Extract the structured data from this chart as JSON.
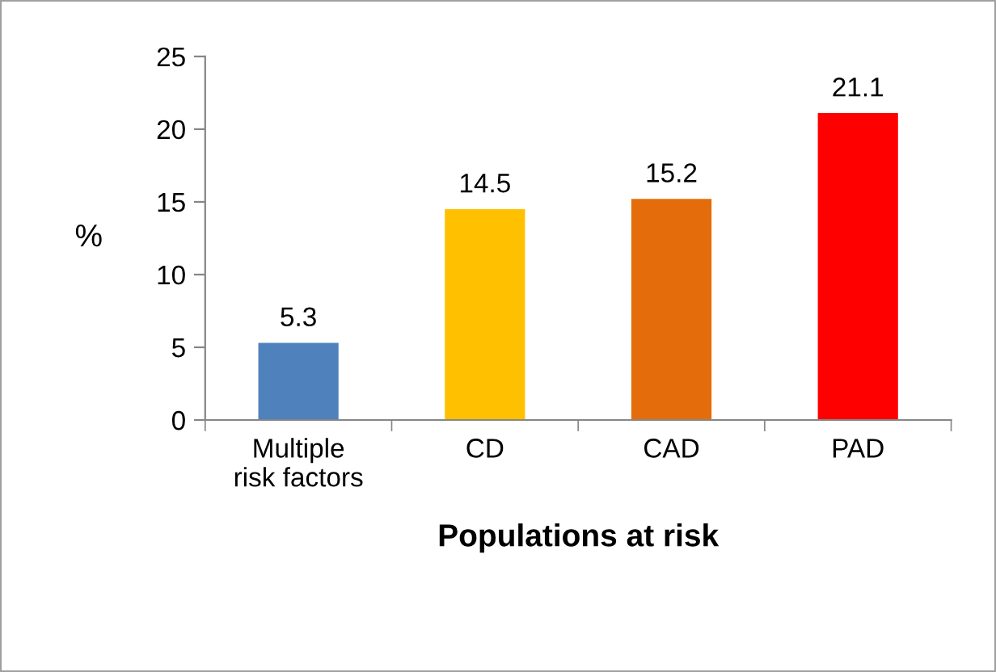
{
  "chart_data": {
    "type": "bar",
    "xlabel": "Populations at risk",
    "ylabel": "%",
    "categories": [
      "Multiple\nrisk factors",
      "CD",
      "CAD",
      "PAD"
    ],
    "values": [
      5.3,
      14.5,
      15.2,
      21.1
    ],
    "colors": [
      "#4f81bd",
      "#ffc000",
      "#e46c0a",
      "#ff0000"
    ],
    "ylim": [
      0,
      25
    ],
    "yticks": [
      0,
      5,
      10,
      15,
      20,
      25
    ],
    "grid": false,
    "data_labels": true
  }
}
